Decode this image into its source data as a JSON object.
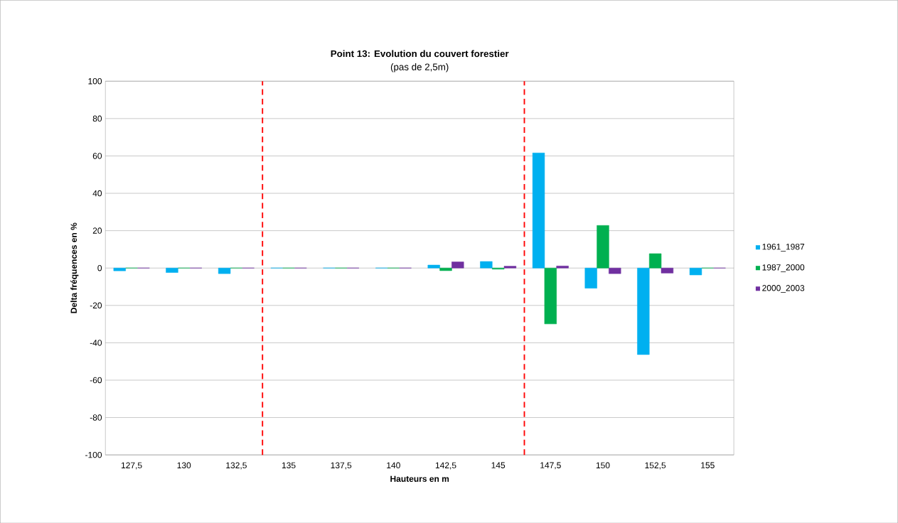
{
  "chart_data": {
    "type": "bar",
    "title": "Point 13: Evolution du couvert forestier",
    "subtitle": "(pas de  2,5m)",
    "xlabel": "Hauteurs en m",
    "ylabel": "Delta fréquences en %",
    "x": [
      127.5,
      130,
      132.5,
      135,
      137.5,
      140,
      142.5,
      145,
      147.5,
      150,
      152.5,
      155
    ],
    "series": [
      {
        "name": "1961_1987",
        "color": "#00b0f0",
        "values": [
          -1.5,
          -2.4,
          -3,
          0,
          0,
          0,
          1.6,
          3.5,
          61.6,
          -10.8,
          -46.3,
          -3.7
        ]
      },
      {
        "name": "1987_2000",
        "color": "#00b050",
        "values": [
          0,
          0,
          0,
          0,
          0,
          0,
          -1.4,
          -0.6,
          -29.9,
          22.8,
          7.7,
          0
        ]
      },
      {
        "name": "2000_2003",
        "color": "#7030a0",
        "values": [
          0,
          0,
          0,
          0,
          0,
          0,
          3.3,
          1,
          1.1,
          -3,
          -2.7,
          0
        ]
      }
    ],
    "xlim": [
      126.25,
      156.25
    ],
    "xticks": [
      {
        "value": 127.5,
        "label": "127,5"
      },
      {
        "value": 130,
        "label": "130"
      },
      {
        "value": 132.5,
        "label": "132,5"
      },
      {
        "value": 135,
        "label": "135"
      },
      {
        "value": 137.5,
        "label": "137,5"
      },
      {
        "value": 140,
        "label": "140"
      },
      {
        "value": 142.5,
        "label": "142,5"
      },
      {
        "value": 145,
        "label": "145"
      },
      {
        "value": 147.5,
        "label": "147,5"
      },
      {
        "value": 150,
        "label": "150"
      },
      {
        "value": 152.5,
        "label": "152,5"
      },
      {
        "value": 155,
        "label": "155"
      }
    ],
    "ylim": [
      -100,
      100
    ],
    "yticks": [
      -100,
      -80,
      -60,
      -40,
      -20,
      0,
      20,
      40,
      60,
      80,
      100
    ],
    "ref_lines": [
      {
        "axis": "x",
        "value": 133.75,
        "color": "#ff0000",
        "line_style": "dashed"
      },
      {
        "axis": "x",
        "value": 146.25,
        "color": "#ff0000",
        "line_style": "dashed"
      }
    ],
    "grid": "y",
    "legend": "right"
  }
}
